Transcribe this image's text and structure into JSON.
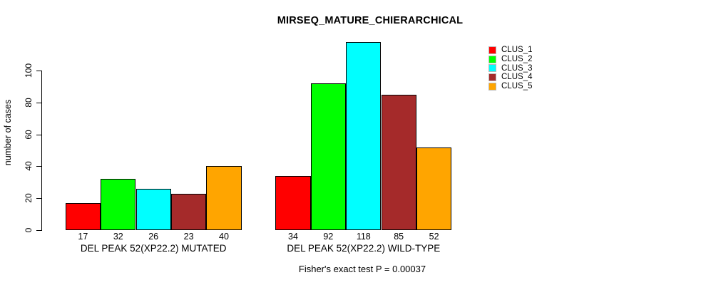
{
  "chart_data": {
    "type": "bar",
    "title": "MIRSEQ_MATURE_CHIERARCHICAL",
    "ylabel": "number of cases",
    "xlabel": "",
    "ylim": [
      0,
      120
    ],
    "yticks": [
      0,
      20,
      40,
      60,
      80,
      100
    ],
    "grid": false,
    "legend_position": "top-right",
    "bar_value_labels": true,
    "categories": [
      "DEL PEAK 52(XP22.2) MUTATED",
      "DEL PEAK 52(XP22.2) WILD-TYPE"
    ],
    "series": [
      {
        "name": "CLUS_1",
        "color": "#FF0000",
        "values": [
          17,
          34
        ]
      },
      {
        "name": "CLUS_2",
        "color": "#00FF00",
        "values": [
          32,
          92
        ]
      },
      {
        "name": "CLUS_3",
        "color": "#00FFFF",
        "values": [
          26,
          118
        ]
      },
      {
        "name": "CLUS_4",
        "color": "#A52A2A",
        "values": [
          23,
          85
        ]
      },
      {
        "name": "CLUS_5",
        "color": "#FFA500",
        "values": [
          40,
          52
        ]
      }
    ],
    "annotation": "Fisher's exact test P = 0.00037"
  }
}
